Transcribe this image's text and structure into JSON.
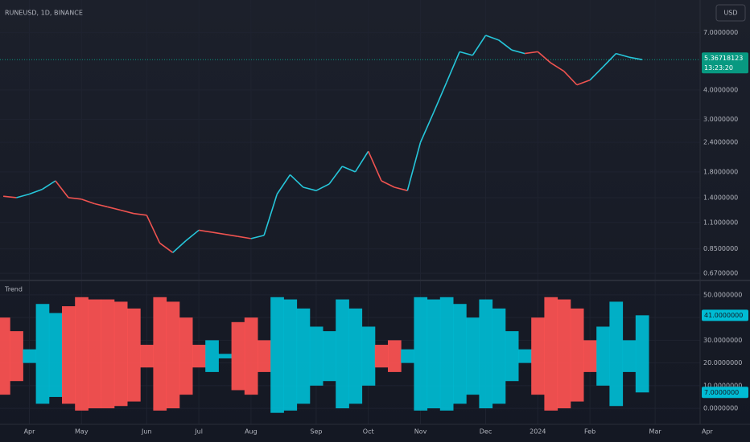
{
  "chart_data": [
    {
      "type": "line",
      "title": "RUNEUSD, 1D, BINANCE",
      "currency": "USD",
      "log_scale": true,
      "ylim": [
        0.63,
        9.6
      ],
      "yticks": [
        {
          "value": 7,
          "label": "7.0000000"
        },
        {
          "value": 4,
          "label": "4.0000000"
        },
        {
          "value": 3,
          "label": "3.0000000"
        },
        {
          "value": 2.4,
          "label": "2.4000000"
        },
        {
          "value": 1.8,
          "label": "1.8000000"
        },
        {
          "value": 1.4,
          "label": "1.4000000"
        },
        {
          "value": 1.1,
          "label": "1.1000000"
        },
        {
          "value": 0.85,
          "label": "0.8500000"
        },
        {
          "value": 0.67,
          "label": "0.6700000"
        }
      ],
      "values": [
        1.42,
        1.4,
        1.45,
        1.52,
        1.65,
        1.4,
        1.38,
        1.32,
        1.28,
        1.24,
        1.2,
        1.18,
        0.9,
        0.82,
        0.92,
        1.02,
        1.0,
        0.98,
        0.96,
        0.94,
        0.97,
        1.45,
        1.75,
        1.55,
        1.5,
        1.6,
        1.9,
        1.8,
        2.2,
        1.65,
        1.55,
        1.5,
        2.4,
        3.2,
        4.3,
        5.8,
        5.6,
        6.8,
        6.5,
        5.9,
        5.7,
        5.8,
        5.2,
        4.8,
        4.2,
        4.4,
        5.0,
        5.7,
        5.5,
        5.37,
        null,
        null,
        null,
        null,
        null
      ],
      "colors": [
        "#ef5350",
        "#ef5350",
        "#26c6da",
        "#26c6da",
        "#26c6da",
        "#ef5350",
        "#ef5350",
        "#ef5350",
        "#ef5350",
        "#ef5350",
        "#ef5350",
        "#ef5350",
        "#ef5350",
        "#ef5350",
        "#26c6da",
        "#26c6da",
        "#ef5350",
        "#ef5350",
        "#ef5350",
        "#ef5350",
        "#26c6da",
        "#26c6da",
        "#26c6da",
        "#26c6da",
        "#26c6da",
        "#26c6da",
        "#26c6da",
        "#26c6da",
        "#26c6da",
        "#ef5350",
        "#ef5350",
        "#ef5350",
        "#26c6da",
        "#26c6da",
        "#26c6da",
        "#26c6da",
        "#26c6da",
        "#26c6da",
        "#26c6da",
        "#26c6da",
        "#26c6da",
        "#ef5350",
        "#ef5350",
        "#ef5350",
        "#ef5350",
        "#ef5350",
        "#26c6da",
        "#26c6da",
        "#26c6da",
        "#26c6da",
        null,
        null,
        null,
        null,
        null
      ],
      "last_price": 5.36718123,
      "countdown": "13:23:20",
      "last_color": "#089981"
    },
    {
      "type": "band",
      "title": "Trend",
      "categories": [
        null,
        null,
        "Apr",
        null,
        null,
        null,
        "May",
        null,
        null,
        null,
        null,
        "Jun",
        null,
        null,
        null,
        "Jul",
        null,
        null,
        null,
        "Aug",
        null,
        null,
        null,
        null,
        "Sep",
        null,
        null,
        null,
        "Oct",
        null,
        null,
        null,
        "Nov",
        null,
        null,
        null,
        null,
        "Dec",
        null,
        null,
        null,
        "2024",
        null,
        null,
        null,
        "Feb",
        null,
        null,
        null,
        null,
        "Mar",
        null,
        null,
        null,
        "Apr"
      ],
      "ylim": [
        -6,
        56
      ],
      "yticks": [
        {
          "value": 50,
          "label": "50.0000000"
        },
        {
          "value": 40,
          "label": "40.0000000"
        },
        {
          "value": 30,
          "label": "30.0000000"
        },
        {
          "value": 20,
          "label": "20.0000000"
        },
        {
          "value": 10,
          "label": "10.0000000"
        },
        {
          "value": 0,
          "label": "0.0000000"
        }
      ],
      "upper": [
        40,
        34,
        26,
        46,
        42,
        45,
        49,
        48,
        48,
        47,
        44,
        28,
        49,
        47,
        40,
        28,
        30,
        24,
        38,
        40,
        30,
        49,
        48,
        44,
        36,
        34,
        48,
        44,
        36,
        28,
        30,
        26,
        49,
        48,
        49,
        46,
        40,
        48,
        44,
        34,
        26,
        40,
        49,
        48,
        44,
        30,
        36,
        47,
        30,
        41,
        null,
        null,
        null,
        null,
        null
      ],
      "lower": [
        6,
        12,
        20,
        2,
        5,
        2,
        -1,
        0,
        0,
        1,
        3,
        18,
        -1,
        0,
        6,
        18,
        16,
        22,
        8,
        6,
        16,
        -2,
        -1,
        2,
        10,
        12,
        0,
        2,
        10,
        18,
        16,
        20,
        -1,
        0,
        -1,
        2,
        6,
        0,
        2,
        12,
        20,
        6,
        -1,
        0,
        3,
        16,
        10,
        1,
        16,
        7,
        null,
        null,
        null,
        null,
        null
      ],
      "colors": [
        "#ff5252",
        "#ff5252",
        "#00bcd4",
        "#00bcd4",
        "#00bcd4",
        "#ff5252",
        "#ff5252",
        "#ff5252",
        "#ff5252",
        "#ff5252",
        "#ff5252",
        "#ff5252",
        "#ff5252",
        "#ff5252",
        "#ff5252",
        "#ff5252",
        "#00bcd4",
        "#00bcd4",
        "#ff5252",
        "#ff5252",
        "#ff5252",
        "#00bcd4",
        "#00bcd4",
        "#00bcd4",
        "#00bcd4",
        "#00bcd4",
        "#00bcd4",
        "#00bcd4",
        "#00bcd4",
        "#ff5252",
        "#ff5252",
        "#00bcd4",
        "#00bcd4",
        "#00bcd4",
        "#00bcd4",
        "#00bcd4",
        "#00bcd4",
        "#00bcd4",
        "#00bcd4",
        "#00bcd4",
        "#00bcd4",
        "#ff5252",
        "#ff5252",
        "#ff5252",
        "#ff5252",
        "#ff5252",
        "#00bcd4",
        "#00bcd4",
        "#00bcd4",
        "#00bcd4",
        null,
        null,
        null,
        null,
        null
      ],
      "last_labels": [
        {
          "value": 41,
          "label": "41.0000000"
        },
        {
          "value": 7,
          "label": "7.0000000"
        }
      ],
      "last_color": "#00bcd4"
    }
  ]
}
